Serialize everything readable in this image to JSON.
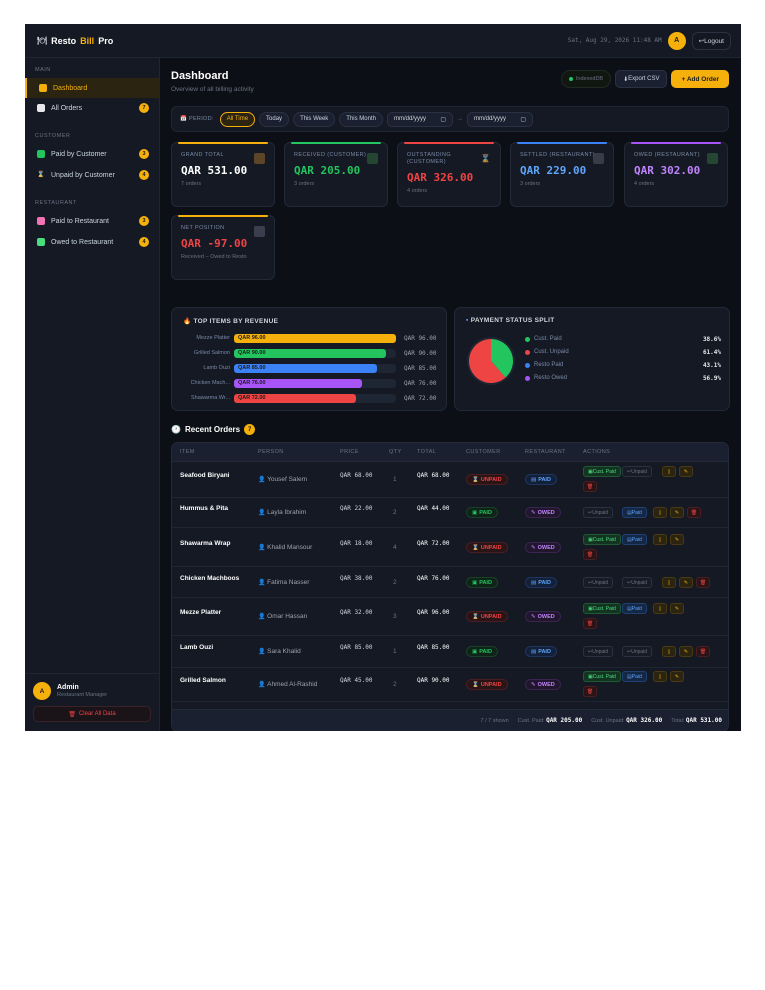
{
  "app": {
    "brand_prefix": "Resto",
    "brand_accent": "Bill",
    "brand_suffix": "Pro",
    "brand_icon": "plate-icon",
    "datetime": "Sat, Aug 29, 2026 11:48 AM",
    "avatar_initial": "A",
    "logout_label": "Logout"
  },
  "colors": {
    "accent": "#f5b00b",
    "green": "#22c55e",
    "red": "#ef4444",
    "blue": "#3b82f6",
    "purple": "#a855f7",
    "background": "#0c0f16"
  },
  "sidebar": {
    "sections": [
      {
        "title": "MAIN",
        "items": [
          {
            "label": "Dashboard",
            "icon": "chart-icon",
            "active": true,
            "badge": ""
          },
          {
            "label": "All Orders",
            "icon": "receipt-icon",
            "active": false,
            "badge": "7"
          }
        ]
      },
      {
        "title": "CUSTOMER",
        "items": [
          {
            "label": "Paid by Customer",
            "icon": "check-icon",
            "active": false,
            "badge": "3"
          },
          {
            "label": "Unpaid by Customer",
            "icon": "hourglass-icon",
            "active": false,
            "badge": "4"
          }
        ]
      },
      {
        "title": "RESTAURANT",
        "items": [
          {
            "label": "Paid to Restaurant",
            "icon": "restaurant-icon",
            "active": false,
            "badge": "3"
          },
          {
            "label": "Owed to Restaurant",
            "icon": "money-icon",
            "active": false,
            "badge": "4"
          }
        ]
      }
    ],
    "user": {
      "initial": "A",
      "name": "Admin",
      "role": "Restaurant Manager"
    },
    "clear_label": "Clear All Data"
  },
  "header": {
    "title": "Dashboard",
    "subtitle": "Overview of all billing activity",
    "status_label": "IndexedDB",
    "export_label": "Export CSV",
    "add_label": "+ Add Order"
  },
  "filter": {
    "period_label": "PERIOD:",
    "chips": [
      "All Time",
      "Today",
      "This Week",
      "This Month"
    ],
    "active_chip": 0,
    "date_from_placeholder": "mm/dd/yyyy",
    "date_to_placeholder": "mm/dd/yyyy",
    "separator": "→"
  },
  "stats": [
    {
      "label": "GRAND TOTAL",
      "value": "QAR 531.00",
      "sub": "7 orders",
      "color": "#f5b00b",
      "value_color": "#ffffff",
      "icon": "money-bag-icon"
    },
    {
      "label": "RECEIVED (CUSTOMER)",
      "value": "QAR 205.00",
      "sub": "3 orders",
      "color": "#22c55e",
      "value_color": "#22c55e",
      "icon": "check-icon"
    },
    {
      "label": "OUTSTANDING (CUSTOMER)",
      "value": "QAR 326.00",
      "sub": "4 orders",
      "color": "#ef4444",
      "value_color": "#ef4444",
      "icon": "hourglass-icon"
    },
    {
      "label": "SETTLED (RESTAURANT)",
      "value": "QAR 229.00",
      "sub": "3 orders",
      "color": "#3b82f6",
      "value_color": "#60a5fa",
      "icon": "restaurant-icon"
    },
    {
      "label": "OWED (RESTAURANT)",
      "value": "QAR 302.00",
      "sub": "4 orders",
      "color": "#a855f7",
      "value_color": "#c084fc",
      "icon": "money-icon"
    },
    {
      "label": "NET POSITION",
      "value": "QAR -97.00",
      "sub": "Received − Owed to Resto",
      "color": "#f5b00b",
      "value_color": "#ef4444",
      "icon": "scale-icon"
    }
  ],
  "top_items": {
    "title": "TOP ITEMS BY REVENUE",
    "chart_data": {
      "type": "bar",
      "categories": [
        "Mezze Platter",
        "Grilled Salmon",
        "Lamb Ouzi",
        "Chicken Mach...",
        "Shawarma Wr..."
      ],
      "values": [
        96,
        90,
        85,
        76,
        72
      ],
      "inner_labels": [
        "QAR 96.00",
        "QAR 90.00",
        "QAR 85.00",
        "QAR 76.00",
        "QAR 72.00"
      ],
      "value_labels": [
        "QAR 96.00",
        "QAR 90.00",
        "QAR 85.00",
        "QAR 76.00",
        "QAR 72.00"
      ],
      "colors": [
        "#f5b00b",
        "#22c55e",
        "#3b82f6",
        "#a855f7",
        "#ef4444"
      ],
      "xlim": [
        0,
        96
      ]
    }
  },
  "payment_split": {
    "title": "PAYMENT STATUS SPLIT",
    "chart_data": {
      "type": "pie",
      "slices": [
        {
          "label": "Cust. Paid",
          "value": 38.6
        },
        {
          "label": "Cust. Unpaid",
          "value": 61.4
        }
      ],
      "colors": [
        "#22c55e",
        "#ef4444"
      ],
      "legend": [
        {
          "label": "Cust. Paid",
          "pct": "38.6%",
          "color": "#22c55e"
        },
        {
          "label": "Cust. Unpaid",
          "pct": "61.4%",
          "color": "#ef4444"
        },
        {
          "label": "Resto Paid",
          "pct": "43.1%",
          "color": "#3b82f6"
        },
        {
          "label": "Resto Owed",
          "pct": "56.9%",
          "color": "#a855f7"
        }
      ]
    }
  },
  "orders": {
    "title": "Recent Orders",
    "count": "7",
    "headers": [
      "ITEM",
      "PERSON",
      "PRICE",
      "QTY",
      "TOTAL",
      "CUSTOMER",
      "RESTAURANT",
      "ACTIONS"
    ],
    "rows": [
      {
        "item": "Seafood Biryani",
        "person": "Yousef Salem",
        "price": "QAR 68.00",
        "qty": "1",
        "total": "QAR 68.00",
        "customer": "UNPAID",
        "restaurant": "PAID"
      },
      {
        "item": "Hummus & Pita",
        "person": "Layla Ibrahim",
        "price": "QAR 22.00",
        "qty": "2",
        "total": "QAR 44.00",
        "customer": "PAID",
        "restaurant": "OWED"
      },
      {
        "item": "Shawarma Wrap",
        "person": "Khalid Mansour",
        "price": "QAR 18.00",
        "qty": "4",
        "total": "QAR 72.00",
        "customer": "UNPAID",
        "restaurant": "OWED"
      },
      {
        "item": "Chicken Machboos",
        "person": "Fatima Nasser",
        "price": "QAR 38.00",
        "qty": "2",
        "total": "QAR 76.00",
        "customer": "PAID",
        "restaurant": "PAID"
      },
      {
        "item": "Mezze Platter",
        "person": "Omar Hassan",
        "price": "QAR 32.00",
        "qty": "3",
        "total": "QAR 96.00",
        "customer": "UNPAID",
        "restaurant": "OWED"
      },
      {
        "item": "Lamb Ouzi",
        "person": "Sara Khalid",
        "price": "QAR 85.00",
        "qty": "1",
        "total": "QAR 85.00",
        "customer": "PAID",
        "restaurant": "PAID"
      },
      {
        "item": "Grilled Salmon",
        "person": "Ahmed Al-Rashid",
        "price": "QAR 45.00",
        "qty": "2",
        "total": "QAR 90.00",
        "customer": "UNPAID",
        "restaurant": "OWED"
      }
    ],
    "action_labels": {
      "cust_paid": "Cust. Paid",
      "unpaid": "Unpaid",
      "resto_paid": "Paid"
    },
    "footer": {
      "shown": "7 / 7 shown",
      "cust_paid_label": "Cust. Paid:",
      "cust_paid_value": "QAR 205.00",
      "cust_unpaid_label": "Cust. Unpaid:",
      "cust_unpaid_value": "QAR 326.00",
      "total_label": "Total:",
      "total_value": "QAR 531.00"
    }
  }
}
